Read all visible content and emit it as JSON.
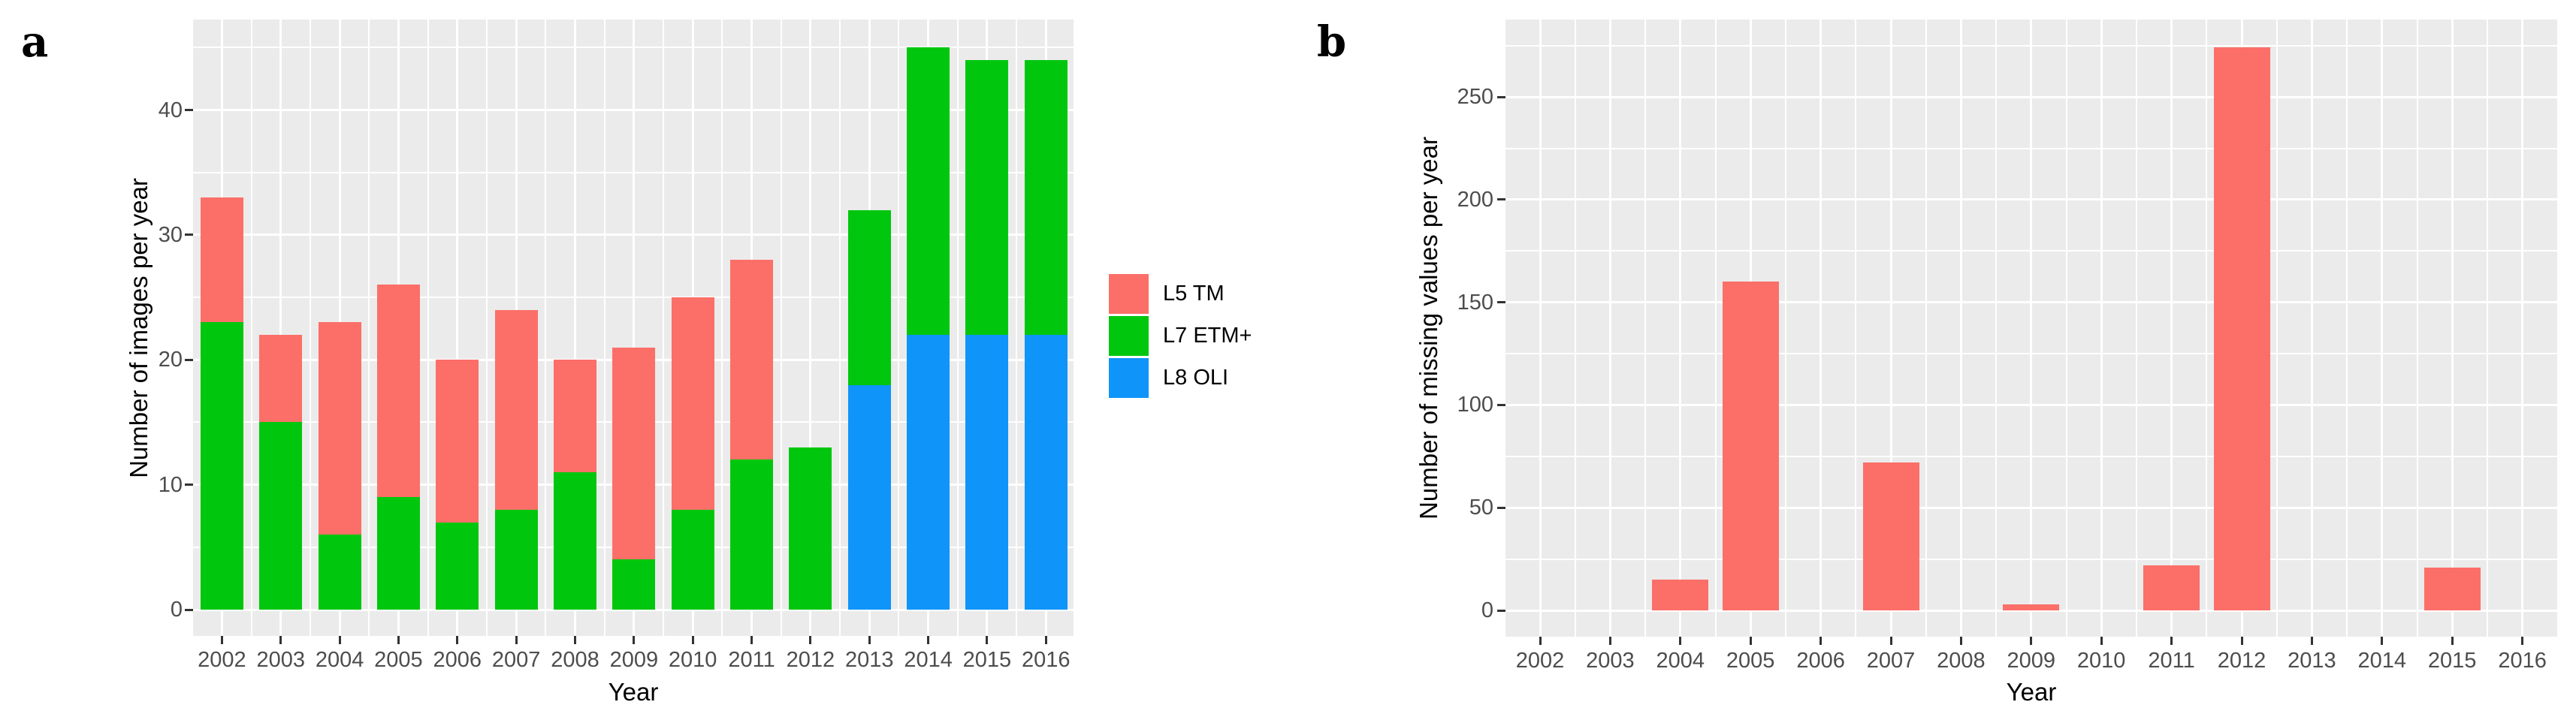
{
  "style": {
    "panel_background": "#EBEBEB",
    "gridline_color": "#FFFFFF",
    "tick_text_color": "#4D4D4D",
    "title_text_color": "#000000"
  },
  "legend": {
    "items": [
      {
        "label": "L5 TM",
        "color": "#FB6F68"
      },
      {
        "label": "L7 ETM+",
        "color": "#00C70D"
      },
      {
        "label": "L8 OLI",
        "color": "#0F94F9"
      }
    ]
  },
  "chart_data": [
    {
      "type": "bar",
      "stacked": true,
      "panel_letter": "a",
      "title": "",
      "xlabel": "Year",
      "ylabel": "Number of images per year",
      "categories": [
        "2002",
        "2003",
        "2004",
        "2005",
        "2006",
        "2007",
        "2008",
        "2009",
        "2010",
        "2011",
        "2012",
        "2013",
        "2014",
        "2015",
        "2016"
      ],
      "series": [
        {
          "name": "L5 TM",
          "color": "#FB6F68",
          "values": [
            10,
            7,
            17,
            17,
            13,
            16,
            9,
            17,
            17,
            16,
            0,
            0,
            0,
            0,
            0
          ]
        },
        {
          "name": "L7 ETM+",
          "color": "#00C70D",
          "values": [
            23,
            15,
            6,
            9,
            7,
            8,
            11,
            4,
            8,
            12,
            13,
            14,
            23,
            22,
            22
          ]
        },
        {
          "name": "L8 OLI",
          "color": "#0F94F9",
          "values": [
            0,
            0,
            0,
            0,
            0,
            0,
            0,
            0,
            0,
            0,
            0,
            18,
            22,
            22,
            22
          ]
        }
      ],
      "totals": [
        33,
        22,
        23,
        26,
        20,
        24,
        20,
        21,
        25,
        28,
        13,
        32,
        45,
        44,
        44
      ],
      "stack_order_bottom_to_top": [
        "L8 OLI",
        "L7 ETM+",
        "L5 TM"
      ],
      "y_ticks": [
        0,
        10,
        20,
        30,
        40
      ],
      "y_minor_ticks": [
        5,
        15,
        25,
        35,
        45
      ],
      "ylim": [
        0,
        47
      ],
      "grid": true,
      "legend_position": "right"
    },
    {
      "type": "bar",
      "stacked": false,
      "panel_letter": "b",
      "title": "",
      "xlabel": "Year",
      "ylabel": "Number of missing values per year",
      "categories": [
        "2002",
        "2003",
        "2004",
        "2005",
        "2006",
        "2007",
        "2008",
        "2009",
        "2010",
        "2011",
        "2012",
        "2013",
        "2014",
        "2015",
        "2016"
      ],
      "series": [
        {
          "color": "#FB6F68",
          "values": [
            0,
            0,
            15,
            160,
            0,
            72,
            0,
            3,
            0,
            22,
            274,
            0,
            0,
            21,
            0
          ]
        }
      ],
      "y_ticks": [
        0,
        50,
        100,
        150,
        200,
        250
      ],
      "y_minor_ticks": [
        25,
        75,
        125,
        175,
        225,
        275
      ],
      "ylim": [
        0,
        288
      ],
      "grid": true,
      "legend_position": "none"
    }
  ]
}
